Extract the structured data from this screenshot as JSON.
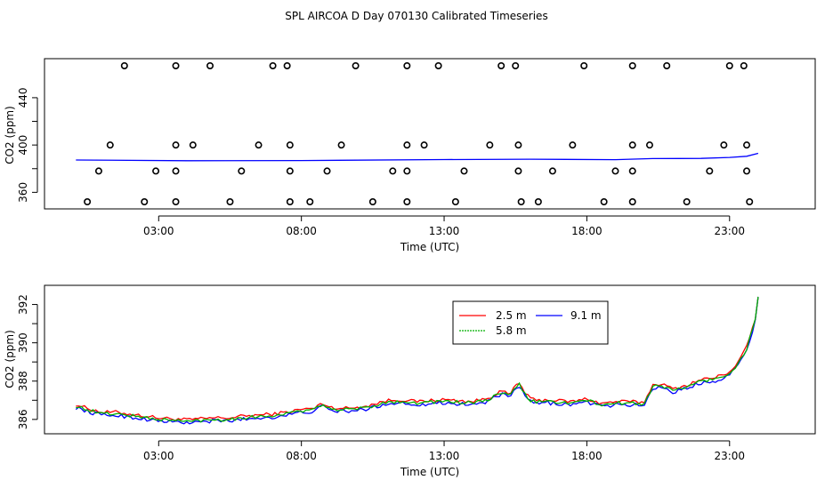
{
  "chart_data": [
    {
      "type": "scatter",
      "title": "SPL AIRCOA D  Day 070130  Calibrated Timeseries",
      "xlabel": "Time (UTC)",
      "ylabel": "CO2 (ppm)",
      "xlim": [
        -1.0,
        26.0
      ],
      "ylim": [
        346,
        473
      ],
      "xticks": [
        3,
        8,
        13,
        18,
        23
      ],
      "xtick_labels": [
        "03:00",
        "08:00",
        "13:00",
        "18:00",
        "23:00"
      ],
      "yticks": [
        360,
        400,
        440
      ],
      "ytick_labels": [
        "360",
        "400",
        "440"
      ],
      "points": {
        "high": {
          "y": 467,
          "x": [
            1.8,
            3.6,
            4.8,
            7.0,
            7.5,
            9.9,
            11.7,
            12.8,
            15.0,
            15.5,
            17.9,
            19.6,
            20.8,
            23.0,
            23.5
          ]
        },
        "mid_upper": {
          "y": 400,
          "x": [
            1.3,
            3.6,
            4.2,
            6.5,
            7.6,
            9.4,
            11.7,
            12.3,
            14.6,
            15.6,
            17.5,
            19.6,
            20.2,
            22.8,
            23.6
          ]
        },
        "mid_lower": {
          "y": 378,
          "x": [
            0.9,
            2.9,
            3.6,
            5.9,
            7.6,
            8.9,
            11.2,
            11.7,
            13.7,
            15.6,
            16.8,
            19.0,
            19.6,
            22.3,
            23.6
          ]
        },
        "low": {
          "y": 352,
          "x": [
            0.5,
            2.5,
            3.6,
            5.5,
            7.6,
            8.3,
            10.5,
            11.7,
            13.4,
            15.7,
            16.3,
            18.6,
            19.6,
            21.5,
            23.7
          ]
        }
      },
      "trend": {
        "x": [
          0.1,
          4.0,
          8.0,
          13.0,
          16.0,
          19.0,
          20.3,
          22.0,
          23.0,
          23.6,
          24.0
        ],
        "y": [
          387.3,
          386.7,
          386.9,
          387.7,
          388.0,
          387.6,
          388.5,
          388.7,
          389.5,
          390.5,
          393.0
        ]
      }
    },
    {
      "type": "line",
      "xlabel": "Time (UTC)",
      "ylabel": "CO2 (ppm)",
      "xlim": [
        -1.0,
        26.0
      ],
      "ylim": [
        385.25,
        393.0
      ],
      "xticks": [
        3,
        8,
        13,
        18,
        23
      ],
      "xtick_labels": [
        "03:00",
        "08:00",
        "13:00",
        "18:00",
        "23:00"
      ],
      "yticks": [
        386,
        388,
        390,
        392
      ],
      "ytick_labels": [
        "386",
        "388",
        "390",
        "392"
      ],
      "legend": {
        "position": "top-center",
        "columns": 2
      },
      "base_x": [
        0.1,
        0.5,
        1.0,
        1.5,
        2.0,
        2.5,
        3.0,
        3.5,
        4.0,
        4.5,
        5.0,
        5.5,
        6.0,
        6.5,
        7.0,
        7.5,
        8.0,
        8.5,
        8.7,
        9.0,
        9.5,
        10.0,
        10.5,
        11.0,
        11.5,
        12.0,
        12.5,
        13.0,
        13.5,
        14.0,
        14.5,
        15.0,
        15.3,
        15.6,
        15.8,
        16.0,
        16.3,
        16.6,
        17.0,
        17.5,
        18.0,
        18.5,
        19.0,
        19.5,
        20.0,
        20.3,
        20.6,
        21.0,
        21.5,
        22.0,
        22.5,
        23.0,
        23.3,
        23.6,
        23.9,
        24.0
      ],
      "base_y": [
        386.7,
        386.5,
        386.3,
        386.3,
        386.2,
        386.1,
        386.0,
        385.95,
        385.9,
        385.95,
        386.0,
        386.0,
        386.1,
        386.15,
        386.2,
        386.3,
        386.45,
        386.5,
        386.8,
        386.55,
        386.5,
        386.55,
        386.7,
        386.9,
        386.95,
        386.85,
        386.9,
        386.95,
        386.9,
        386.85,
        387.0,
        387.4,
        387.2,
        387.9,
        387.4,
        387.0,
        386.9,
        386.95,
        386.9,
        386.85,
        387.0,
        386.75,
        386.85,
        386.85,
        386.8,
        387.7,
        387.8,
        387.5,
        387.7,
        388.0,
        388.1,
        388.4,
        388.9,
        389.7,
        391.2,
        392.4
      ],
      "series": [
        {
          "name": "2.5 m",
          "color": "#ff0000",
          "offset": 0.08,
          "noise": 0.09
        },
        {
          "name": "9.1 m",
          "color": "#0000ff",
          "offset": -0.08,
          "noise": 0.1
        },
        {
          "name": "5.8 m",
          "color": "#00b000",
          "offset": 0.0,
          "noise": 0.09
        }
      ]
    }
  ]
}
